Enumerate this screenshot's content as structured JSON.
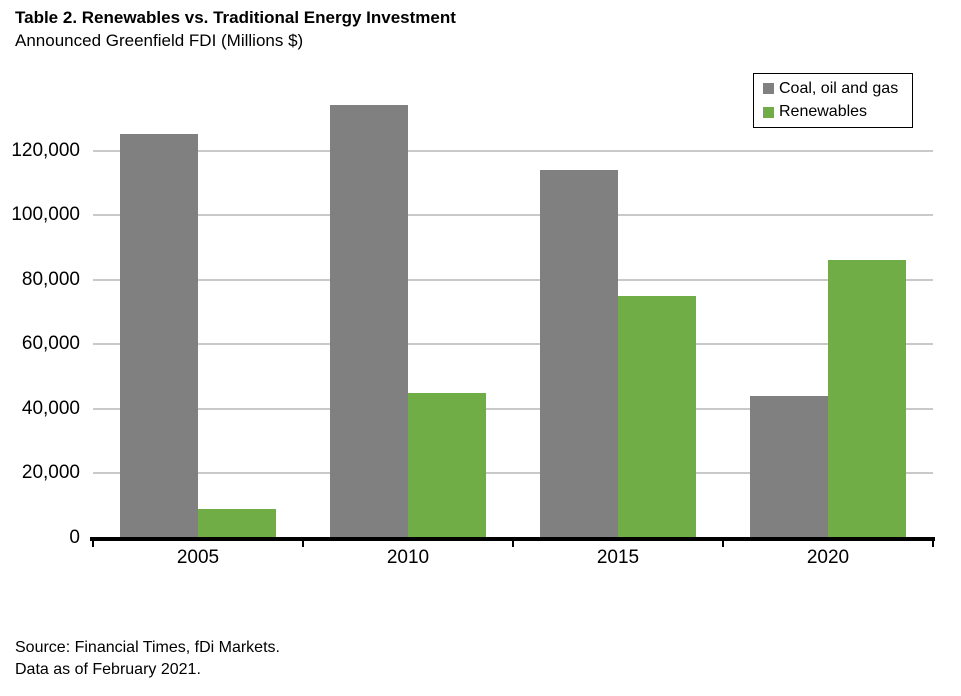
{
  "header": {
    "title": "Table 2. Renewables vs. Traditional Energy Investment",
    "subtitle": "Announced Greenfield FDI (Millions $)"
  },
  "chart_data": {
    "type": "bar",
    "title": "Table 2. Renewables vs. Traditional Energy Investment",
    "subtitle": "Announced Greenfield FDI (Millions $)",
    "categories": [
      "2005",
      "2010",
      "2015",
      "2020"
    ],
    "series": [
      {
        "name": "Coal, oil and gas",
        "color": "#808080",
        "values": [
          125000,
          134000,
          114000,
          44000
        ]
      },
      {
        "name": "Renewables",
        "color": "#70AD47",
        "values": [
          9000,
          45000,
          75000,
          86000
        ]
      }
    ],
    "xlabel": "",
    "ylabel": "",
    "ylim": [
      0,
      140000
    ],
    "ytick_interval": 20000,
    "ytick_labels": [
      "0",
      "20,000",
      "40,000",
      "60,000",
      "80,000",
      "100,000",
      "120,000"
    ],
    "grid": true,
    "gridline_color": "#c9c9c9",
    "legend_position": "top-right"
  },
  "footer": {
    "line1": "Source: Financial Times, fDi Markets.",
    "line2": "Data as of February 2021."
  }
}
